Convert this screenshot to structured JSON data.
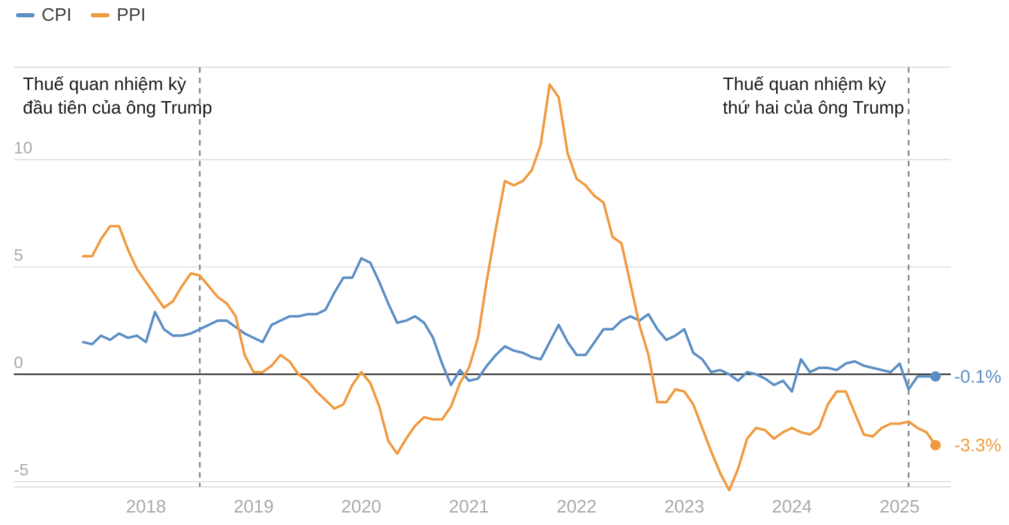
{
  "legend": {
    "items": [
      {
        "label": "CPI",
        "color": "#5b8ec4"
      },
      {
        "label": "PPI",
        "color": "#f0993e"
      }
    ]
  },
  "chart_data": {
    "type": "line",
    "unit": "%",
    "x_start_month": "2017-06",
    "x_end_month": "2025-05",
    "x_ticks": [
      {
        "label": "2018",
        "month_index": 7
      },
      {
        "label": "2019",
        "month_index": 19
      },
      {
        "label": "2020",
        "month_index": 31
      },
      {
        "label": "2021",
        "month_index": 43
      },
      {
        "label": "2022",
        "month_index": 55
      },
      {
        "label": "2023",
        "month_index": 67
      },
      {
        "label": "2024",
        "month_index": 79
      },
      {
        "label": "2025",
        "month_index": 91
      }
    ],
    "y_ticks": [
      10,
      5,
      0,
      -5
    ],
    "ylim": [
      -5.3,
      14.3
    ],
    "grid": true,
    "colors": {
      "grid": "#d9d9d9",
      "zero_line": "#1a1a1a",
      "axis_label": "#a9a9a9",
      "annotation_line": "#8c8c8c",
      "annotation_text": "#1a1a1a"
    },
    "annotations": [
      {
        "lines": [
          "Thuế quan nhiệm kỳ",
          "đầu tiên của ông Trump"
        ],
        "month": "2018-07",
        "month_index": 13
      },
      {
        "lines": [
          "Thuế quan nhiệm kỳ",
          "thứ hai của ông Trump"
        ],
        "month": "2025-02",
        "month_index": 92
      }
    ],
    "series": [
      {
        "name": "CPI",
        "color": "#5b8ec4",
        "end_label": "-0.1%",
        "values": [
          1.5,
          1.4,
          1.8,
          1.6,
          1.9,
          1.7,
          1.8,
          1.5,
          2.9,
          2.1,
          1.8,
          1.8,
          1.9,
          2.1,
          2.3,
          2.5,
          2.5,
          2.2,
          1.9,
          1.7,
          1.5,
          2.3,
          2.5,
          2.7,
          2.7,
          2.8,
          2.8,
          3.0,
          3.8,
          4.5,
          4.5,
          5.4,
          5.2,
          4.3,
          3.3,
          2.4,
          2.5,
          2.7,
          2.4,
          1.7,
          0.5,
          -0.5,
          0.2,
          -0.3,
          -0.2,
          0.4,
          0.9,
          1.3,
          1.1,
          1.0,
          0.8,
          0.7,
          1.5,
          2.3,
          1.5,
          0.9,
          0.9,
          1.5,
          2.1,
          2.1,
          2.5,
          2.7,
          2.5,
          2.8,
          2.1,
          1.6,
          1.8,
          2.1,
          1.0,
          0.7,
          0.1,
          0.2,
          0.0,
          -0.3,
          0.1,
          0.0,
          -0.2,
          -0.5,
          -0.3,
          -0.8,
          0.7,
          0.1,
          0.3,
          0.3,
          0.2,
          0.5,
          0.6,
          0.4,
          0.3,
          0.2,
          0.1,
          0.5,
          -0.7,
          -0.1,
          -0.1,
          -0.1
        ]
      },
      {
        "name": "PPI",
        "color": "#f0993e",
        "end_label": "-3.3%",
        "values": [
          5.5,
          5.5,
          6.3,
          6.9,
          6.9,
          5.8,
          4.9,
          4.3,
          3.7,
          3.1,
          3.4,
          4.1,
          4.7,
          4.6,
          4.1,
          3.6,
          3.3,
          2.7,
          0.9,
          0.1,
          0.1,
          0.4,
          0.9,
          0.6,
          0.0,
          -0.3,
          -0.8,
          -1.2,
          -1.6,
          -1.4,
          -0.5,
          0.1,
          -0.4,
          -1.5,
          -3.1,
          -3.7,
          -3.0,
          -2.4,
          -2.0,
          -2.1,
          -2.1,
          -1.5,
          -0.4,
          0.3,
          1.7,
          4.4,
          6.8,
          9.0,
          8.8,
          9.0,
          9.5,
          10.7,
          13.5,
          12.9,
          10.3,
          9.1,
          8.8,
          8.3,
          8.0,
          6.4,
          6.1,
          4.2,
          2.3,
          0.9,
          -1.3,
          -1.3,
          -0.7,
          -0.8,
          -1.4,
          -2.5,
          -3.6,
          -4.6,
          -5.4,
          -4.4,
          -3.0,
          -2.5,
          -2.6,
          -3.0,
          -2.7,
          -2.5,
          -2.7,
          -2.8,
          -2.5,
          -1.4,
          -0.8,
          -0.8,
          -1.8,
          -2.8,
          -2.9,
          -2.5,
          -2.3,
          -2.3,
          -2.2,
          -2.5,
          -2.7,
          -3.3
        ]
      }
    ]
  }
}
